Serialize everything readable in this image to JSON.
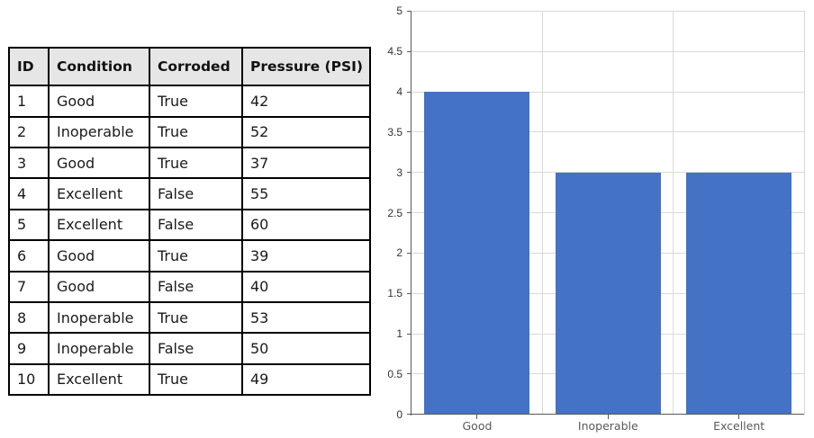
{
  "table": {
    "columns": [
      "ID",
      "Condition",
      "Corroded",
      "Pressure (PSI)"
    ],
    "rows": [
      [
        "1",
        "Good",
        "True",
        "42"
      ],
      [
        "2",
        "Inoperable",
        "True",
        "52"
      ],
      [
        "3",
        "Good",
        "True",
        "37"
      ],
      [
        "4",
        "Excellent",
        "False",
        "55"
      ],
      [
        "5",
        "Excellent",
        "False",
        "60"
      ],
      [
        "6",
        "Good",
        "True",
        "39"
      ],
      [
        "7",
        "Good",
        "False",
        "40"
      ],
      [
        "8",
        "Inoperable",
        "True",
        "53"
      ],
      [
        "9",
        "Inoperable",
        "False",
        "50"
      ],
      [
        "10",
        "Excellent",
        "True",
        "49"
      ]
    ],
    "header_bg": "#e7e6e6",
    "border_color": "#000000"
  },
  "chart_data": {
    "type": "bar",
    "categories": [
      "Good",
      "Inoperable",
      "Excellent"
    ],
    "values": [
      4,
      3,
      3
    ],
    "title": "",
    "xlabel": "",
    "ylabel": "",
    "ylim": [
      0,
      5
    ],
    "ytick_step": 0.5,
    "ytick_labels": [
      "0",
      "0.5",
      "1",
      "1.5",
      "2",
      "2.5",
      "3",
      "3.5",
      "4",
      "4.5",
      "5"
    ],
    "grid": true,
    "legend": false,
    "bar_color": "#4472c4",
    "gridline_color": "#d9d9d9",
    "axis_color": "#595959",
    "ytick_label_color": "#333333",
    "category_label_color": "#595959"
  }
}
